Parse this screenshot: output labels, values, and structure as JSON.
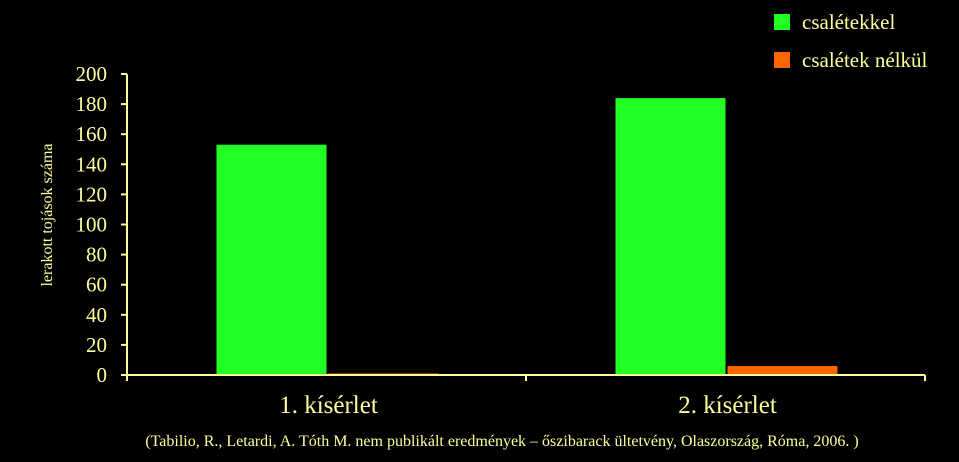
{
  "chart_data": {
    "type": "bar",
    "categories": [
      "1. kísérlet",
      "2. kísérlet"
    ],
    "series": [
      {
        "name": "csalétekkel",
        "color": "#22ff22",
        "values": [
          153,
          184
        ]
      },
      {
        "name": "csalétek nélkül",
        "color": "#ff6600",
        "values": [
          1,
          6
        ]
      }
    ],
    "ylabel": "lerakott tojások száma",
    "ylim": [
      0,
      200
    ],
    "yticks": [
      0,
      20,
      40,
      60,
      80,
      100,
      120,
      140,
      160,
      180,
      200
    ],
    "legend": "top-right",
    "grid": false,
    "axis_color": "#ffff99",
    "source_note": "(Tabilio, R., Letardi, A. Tóth M. nem publikált eredmények – őszibarack ültetvény, Olaszország, Róma, 2006. )"
  }
}
